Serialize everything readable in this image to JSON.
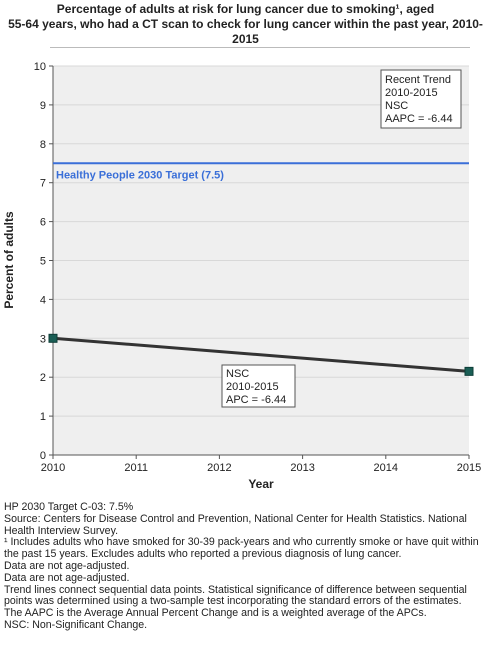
{
  "title": "Percentage of adults at risk for lung cancer due to smoking¹, aged 55-64 years, who had a CT scan to check for lung cancer within the past year, 2010-2015",
  "title_lines": [
    "Percentage of adults at risk for lung cancer due to smoking¹, aged",
    "55-64 years, who had a CT scan to check for lung cancer within the past year, 2010-",
    "2015"
  ],
  "colors": {
    "series": "#333333",
    "marker": "#1a5e55",
    "target": "#3a6fd8",
    "plot_bg": "#efefef",
    "grid": "#d8d8d8"
  },
  "chart_data": {
    "type": "line",
    "xlabel": "Year",
    "ylabel": "Percent of adults",
    "xlim": [
      2010,
      2015
    ],
    "ylim": [
      0,
      10
    ],
    "x_ticks": [
      "2010",
      "2011",
      "2012",
      "2013",
      "2014",
      "2015"
    ],
    "y_ticks": [
      "0",
      "1",
      "2",
      "3",
      "4",
      "5",
      "6",
      "7",
      "8",
      "9",
      "10"
    ],
    "grid": true,
    "series": [
      {
        "name": "NSC",
        "x": [
          2010,
          2015
        ],
        "y": [
          3.0,
          2.15
        ]
      }
    ],
    "target": {
      "label": "Healthy People 2030 Target (7.5)",
      "value": 7.5
    },
    "annotations": {
      "recent_trend": [
        "Recent Trend",
        "2010-2015",
        "NSC",
        "AAPC = -6.44"
      ],
      "segment": [
        "NSC",
        "2010-2015",
        "APC = -6.44"
      ]
    }
  },
  "footnotes": [
    "HP 2030 Target C-03: 7.5%",
    "Source: Centers for Disease Control and Prevention, National Center for Health Statistics. National Health Interview Survey.",
    "¹ Includes adults who have smoked for 30-39 pack-years and who currently smoke or have quit within the past 15 years. Excludes adults who reported a previous diagnosis of lung cancer.",
    "Data are not age-adjusted.",
    "Data are not age-adjusted.",
    "Trend lines connect sequential data points. Statistical significance of difference between sequential points was determined using a two-sample test incorporating the standard errors of the estimates.",
    "The AAPC is the Average Annual Percent Change and is a weighted average of the APCs.",
    "NSC: Non-Significant Change."
  ]
}
